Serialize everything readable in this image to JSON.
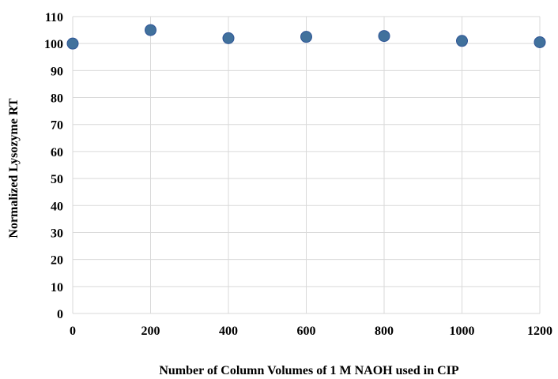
{
  "chart_data": {
    "type": "scatter",
    "title": "",
    "xlabel": "Number of Column Volumes of 1 M NAOH used in CIP",
    "ylabel": "Normalized Lysozyme RT",
    "xlim": [
      0,
      1200
    ],
    "ylim": [
      0,
      110
    ],
    "x_ticks": [
      0,
      200,
      400,
      600,
      800,
      1000,
      1200
    ],
    "y_ticks": [
      0,
      10,
      20,
      30,
      40,
      50,
      60,
      70,
      80,
      90,
      100,
      110
    ],
    "grid": true,
    "legend": "none",
    "series": [
      {
        "color": "#41719c",
        "points": [
          {
            "x": 0,
            "y": 100
          },
          {
            "x": 200,
            "y": 105
          },
          {
            "x": 400,
            "y": 102
          },
          {
            "x": 600,
            "y": 102.5
          },
          {
            "x": 800,
            "y": 102.8
          },
          {
            "x": 1000,
            "y": 101
          },
          {
            "x": 1200,
            "y": 100.5
          }
        ]
      }
    ],
    "colors": {
      "grid": "#d9d9d9",
      "marker_fill": "#41719c",
      "marker_stroke": "#2f5597"
    }
  }
}
